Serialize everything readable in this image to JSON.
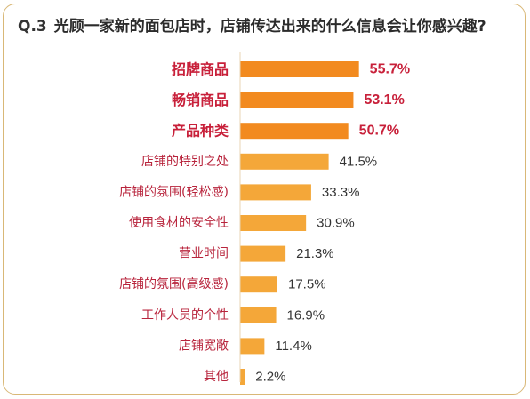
{
  "title": {
    "qnum": "Q.3",
    "text": "光顾一家新的面包店时，店铺传达出来的什么信息会让你感兴趣?"
  },
  "colors": {
    "top_bar": "#f28a1f",
    "bar": "#f4a739",
    "top_label": "#c8203a",
    "label": "#b8243c",
    "value": "#333333",
    "frame": "#d9b877"
  },
  "chart_data": {
    "type": "bar",
    "orientation": "horizontal",
    "categories": [
      "招牌商品",
      "畅销商品",
      "产品种类",
      "店铺的特别之处",
      "店铺的氛围(轻松感)",
      "使用食材的安全性",
      "营业时间",
      "店铺的氛围(高级感)",
      "工作人员的个性",
      "店铺宽敞",
      "其他"
    ],
    "values": [
      55.7,
      53.1,
      50.7,
      41.5,
      33.3,
      30.9,
      21.3,
      17.5,
      16.9,
      11.4,
      2.2
    ],
    "value_labels": [
      "55.7%",
      "53.1%",
      "50.7%",
      "41.5%",
      "33.3%",
      "30.9%",
      "21.3%",
      "17.5%",
      "16.9%",
      "11.4%",
      "2.2%"
    ],
    "highlighted_top": 3,
    "unit": "%",
    "xlim": [
      0,
      100
    ],
    "grid": false,
    "legend": "none"
  }
}
